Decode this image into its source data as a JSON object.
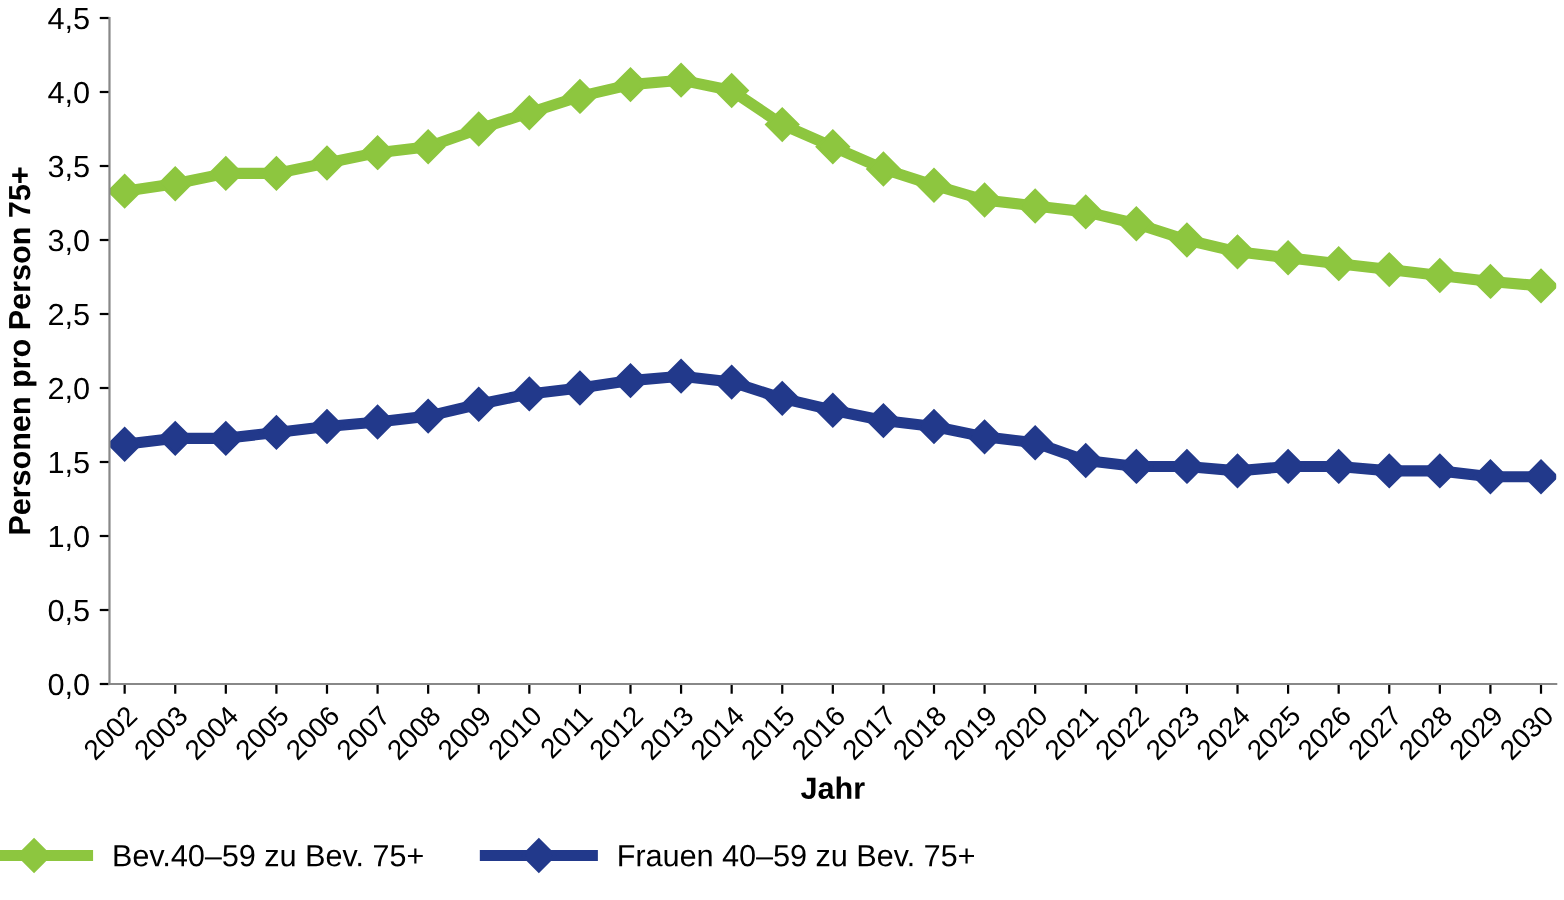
{
  "chart_data": {
    "type": "line",
    "xlabel": "Jahr",
    "ylabel": "Personen pro Person 75+",
    "categories": [
      "2002",
      "2003",
      "2004",
      "2005",
      "2006",
      "2007",
      "2008",
      "2009",
      "2010",
      "2011",
      "2012",
      "2013",
      "2014",
      "2015",
      "2016",
      "2017",
      "2018",
      "2019",
      "2020",
      "2021",
      "2022",
      "2023",
      "2024",
      "2025",
      "2026",
      "2027",
      "2028",
      "2029",
      "2030"
    ],
    "series": [
      {
        "name": "Bev.40–59 zu Bev. 75+",
        "color": "#8dc63f",
        "values": [
          3.33,
          3.38,
          3.45,
          3.45,
          3.52,
          3.59,
          3.63,
          3.75,
          3.86,
          3.97,
          4.05,
          4.08,
          4.01,
          3.78,
          3.63,
          3.48,
          3.37,
          3.27,
          3.23,
          3.19,
          3.11,
          3.0,
          2.92,
          2.88,
          2.84,
          2.8,
          2.76,
          2.72,
          2.69
        ]
      },
      {
        "name": "Frauen 40–59 zu Bev. 75+",
        "color": "#22398b",
        "values": [
          1.62,
          1.66,
          1.66,
          1.7,
          1.74,
          1.77,
          1.81,
          1.89,
          1.96,
          2.0,
          2.05,
          2.08,
          2.04,
          1.93,
          1.85,
          1.78,
          1.74,
          1.67,
          1.63,
          1.51,
          1.47,
          1.47,
          1.44,
          1.47,
          1.47,
          1.44,
          1.44,
          1.4,
          1.4
        ]
      }
    ],
    "ylim": [
      0,
      4.5
    ],
    "yticks": [
      {
        "value": 0,
        "label": "0,0"
      },
      {
        "value": 0.5,
        "label": "0,5"
      },
      {
        "value": 1,
        "label": "1,0"
      },
      {
        "value": 1.5,
        "label": "1,5"
      },
      {
        "value": 2,
        "label": "2,0"
      },
      {
        "value": 2.5,
        "label": "2,5"
      },
      {
        "value": 3,
        "label": "3,0"
      },
      {
        "value": 3.5,
        "label": "3,5"
      },
      {
        "value": 4,
        "label": "4,0"
      },
      {
        "value": 4.5,
        "label": "4,5"
      }
    ],
    "grid": false,
    "legend": "bottom left",
    "marker": "diamond",
    "line_style": "solid"
  }
}
